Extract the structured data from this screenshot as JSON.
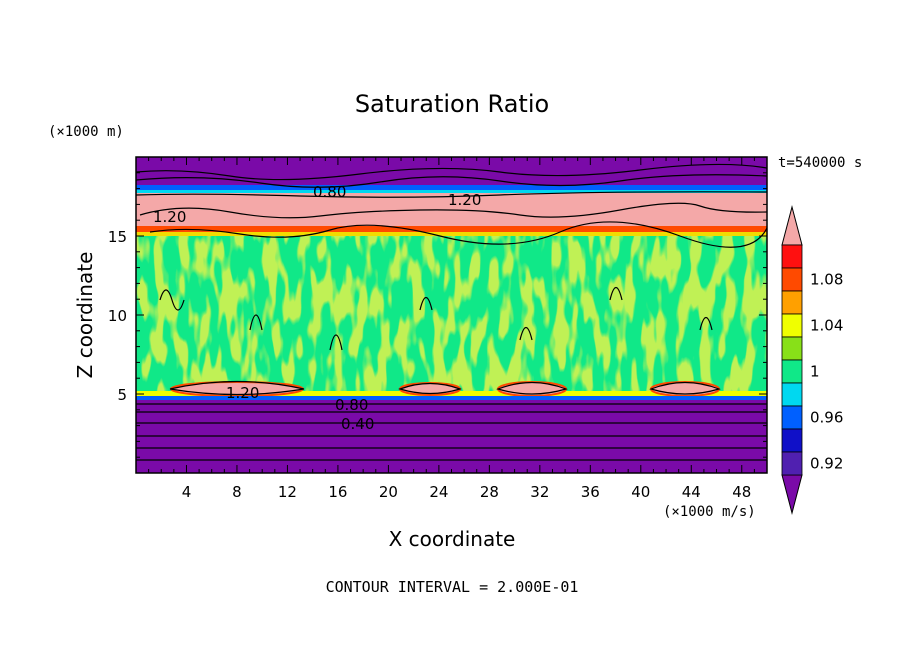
{
  "chart_data": {
    "type": "heatmap",
    "title": "Saturation Ratio",
    "xlabel": "X coordinate",
    "ylabel": "Z coordinate",
    "x_unit": "(×1000 m/s)",
    "y_unit": "(×1000 m)",
    "time_label": "t=540000 s",
    "footer": "CONTOUR INTERVAL = 2.000E-01",
    "xlim": [
      0,
      50
    ],
    "ylim": [
      0,
      20
    ],
    "x_ticks": [
      "4",
      "8",
      "12",
      "16",
      "20",
      "24",
      "28",
      "32",
      "36",
      "40",
      "44",
      "48"
    ],
    "y_ticks": [
      "5",
      "10",
      "15"
    ],
    "colorbar": {
      "labels": [
        "1.08",
        "1.04",
        "1",
        "0.96",
        "0.92"
      ],
      "levels": [
        0.9,
        0.92,
        0.94,
        0.96,
        0.98,
        1.0,
        1.02,
        1.04,
        1.06,
        1.08,
        1.1
      ],
      "colors": [
        "#7a0aa8",
        "#5020b0",
        "#1010c8",
        "#0060ff",
        "#00d8f0",
        "#10e888",
        "#88e018",
        "#f0ff00",
        "#ffa000",
        "#ff4a00",
        "#ff1010",
        "#f4a8a8"
      ]
    },
    "contour_labels": [
      "0.80",
      "1.20",
      "1.20",
      "1.20",
      "0.80",
      "0.40"
    ],
    "bands": [
      {
        "region": "lower dry layer",
        "z": [
          0,
          4.5
        ],
        "value": "<0.92"
      },
      {
        "region": "cloud layer",
        "z": [
          4.5,
          15
        ],
        "value": "0.98-1.04"
      },
      {
        "region": "supersaturated upper layer",
        "z": [
          15,
          18
        ],
        "value": ">1.10"
      },
      {
        "region": "upper dry layer",
        "z": [
          18,
          20
        ],
        "value": "<0.92"
      }
    ]
  }
}
